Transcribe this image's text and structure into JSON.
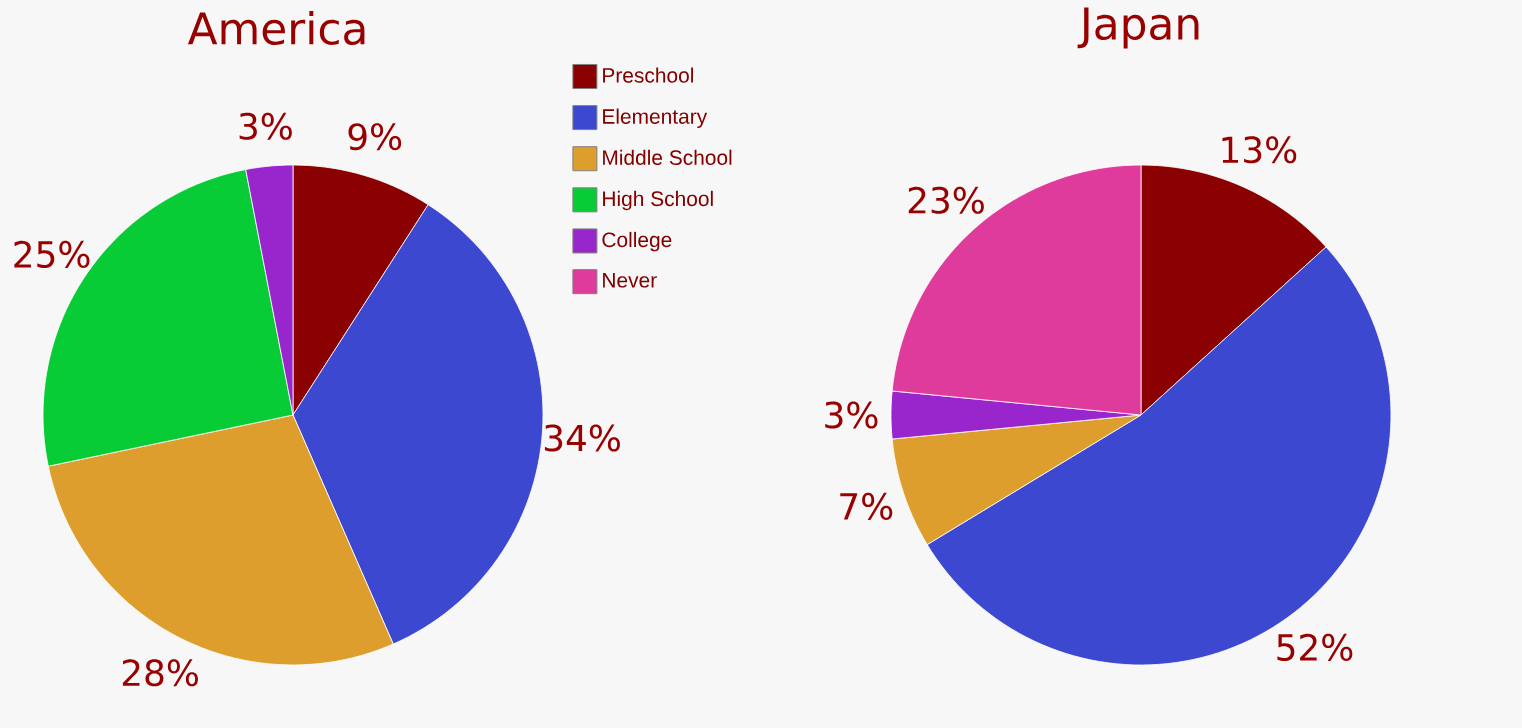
{
  "chart_data": [
    {
      "type": "pie",
      "title": "America",
      "categories": [
        "Preschool",
        "Elementary",
        "Middle School",
        "High School",
        "College",
        "Never"
      ],
      "values": [
        9,
        34,
        28,
        25,
        3,
        0
      ],
      "colors": [
        "#8b0000",
        "#3c48cf",
        "#de9e2e",
        "#08cc35",
        "#9925cc",
        "#de3b9c"
      ],
      "value_labels": [
        "9%",
        "34%",
        "28%",
        "25%",
        "3%",
        null
      ],
      "legend": "right"
    },
    {
      "type": "pie",
      "title": "Japan",
      "categories": [
        null,
        null,
        null,
        null,
        null,
        null
      ],
      "values": [
        13,
        52,
        7,
        0,
        3,
        23
      ],
      "colors": [
        "#8b0000",
        "#3c48cf",
        "#de9e2e",
        "#08cc35",
        "#9925cc",
        "#de3b9c"
      ],
      "value_labels": [
        "13%",
        "52%",
        "7%",
        null,
        "3%",
        "23%"
      ]
    }
  ]
}
